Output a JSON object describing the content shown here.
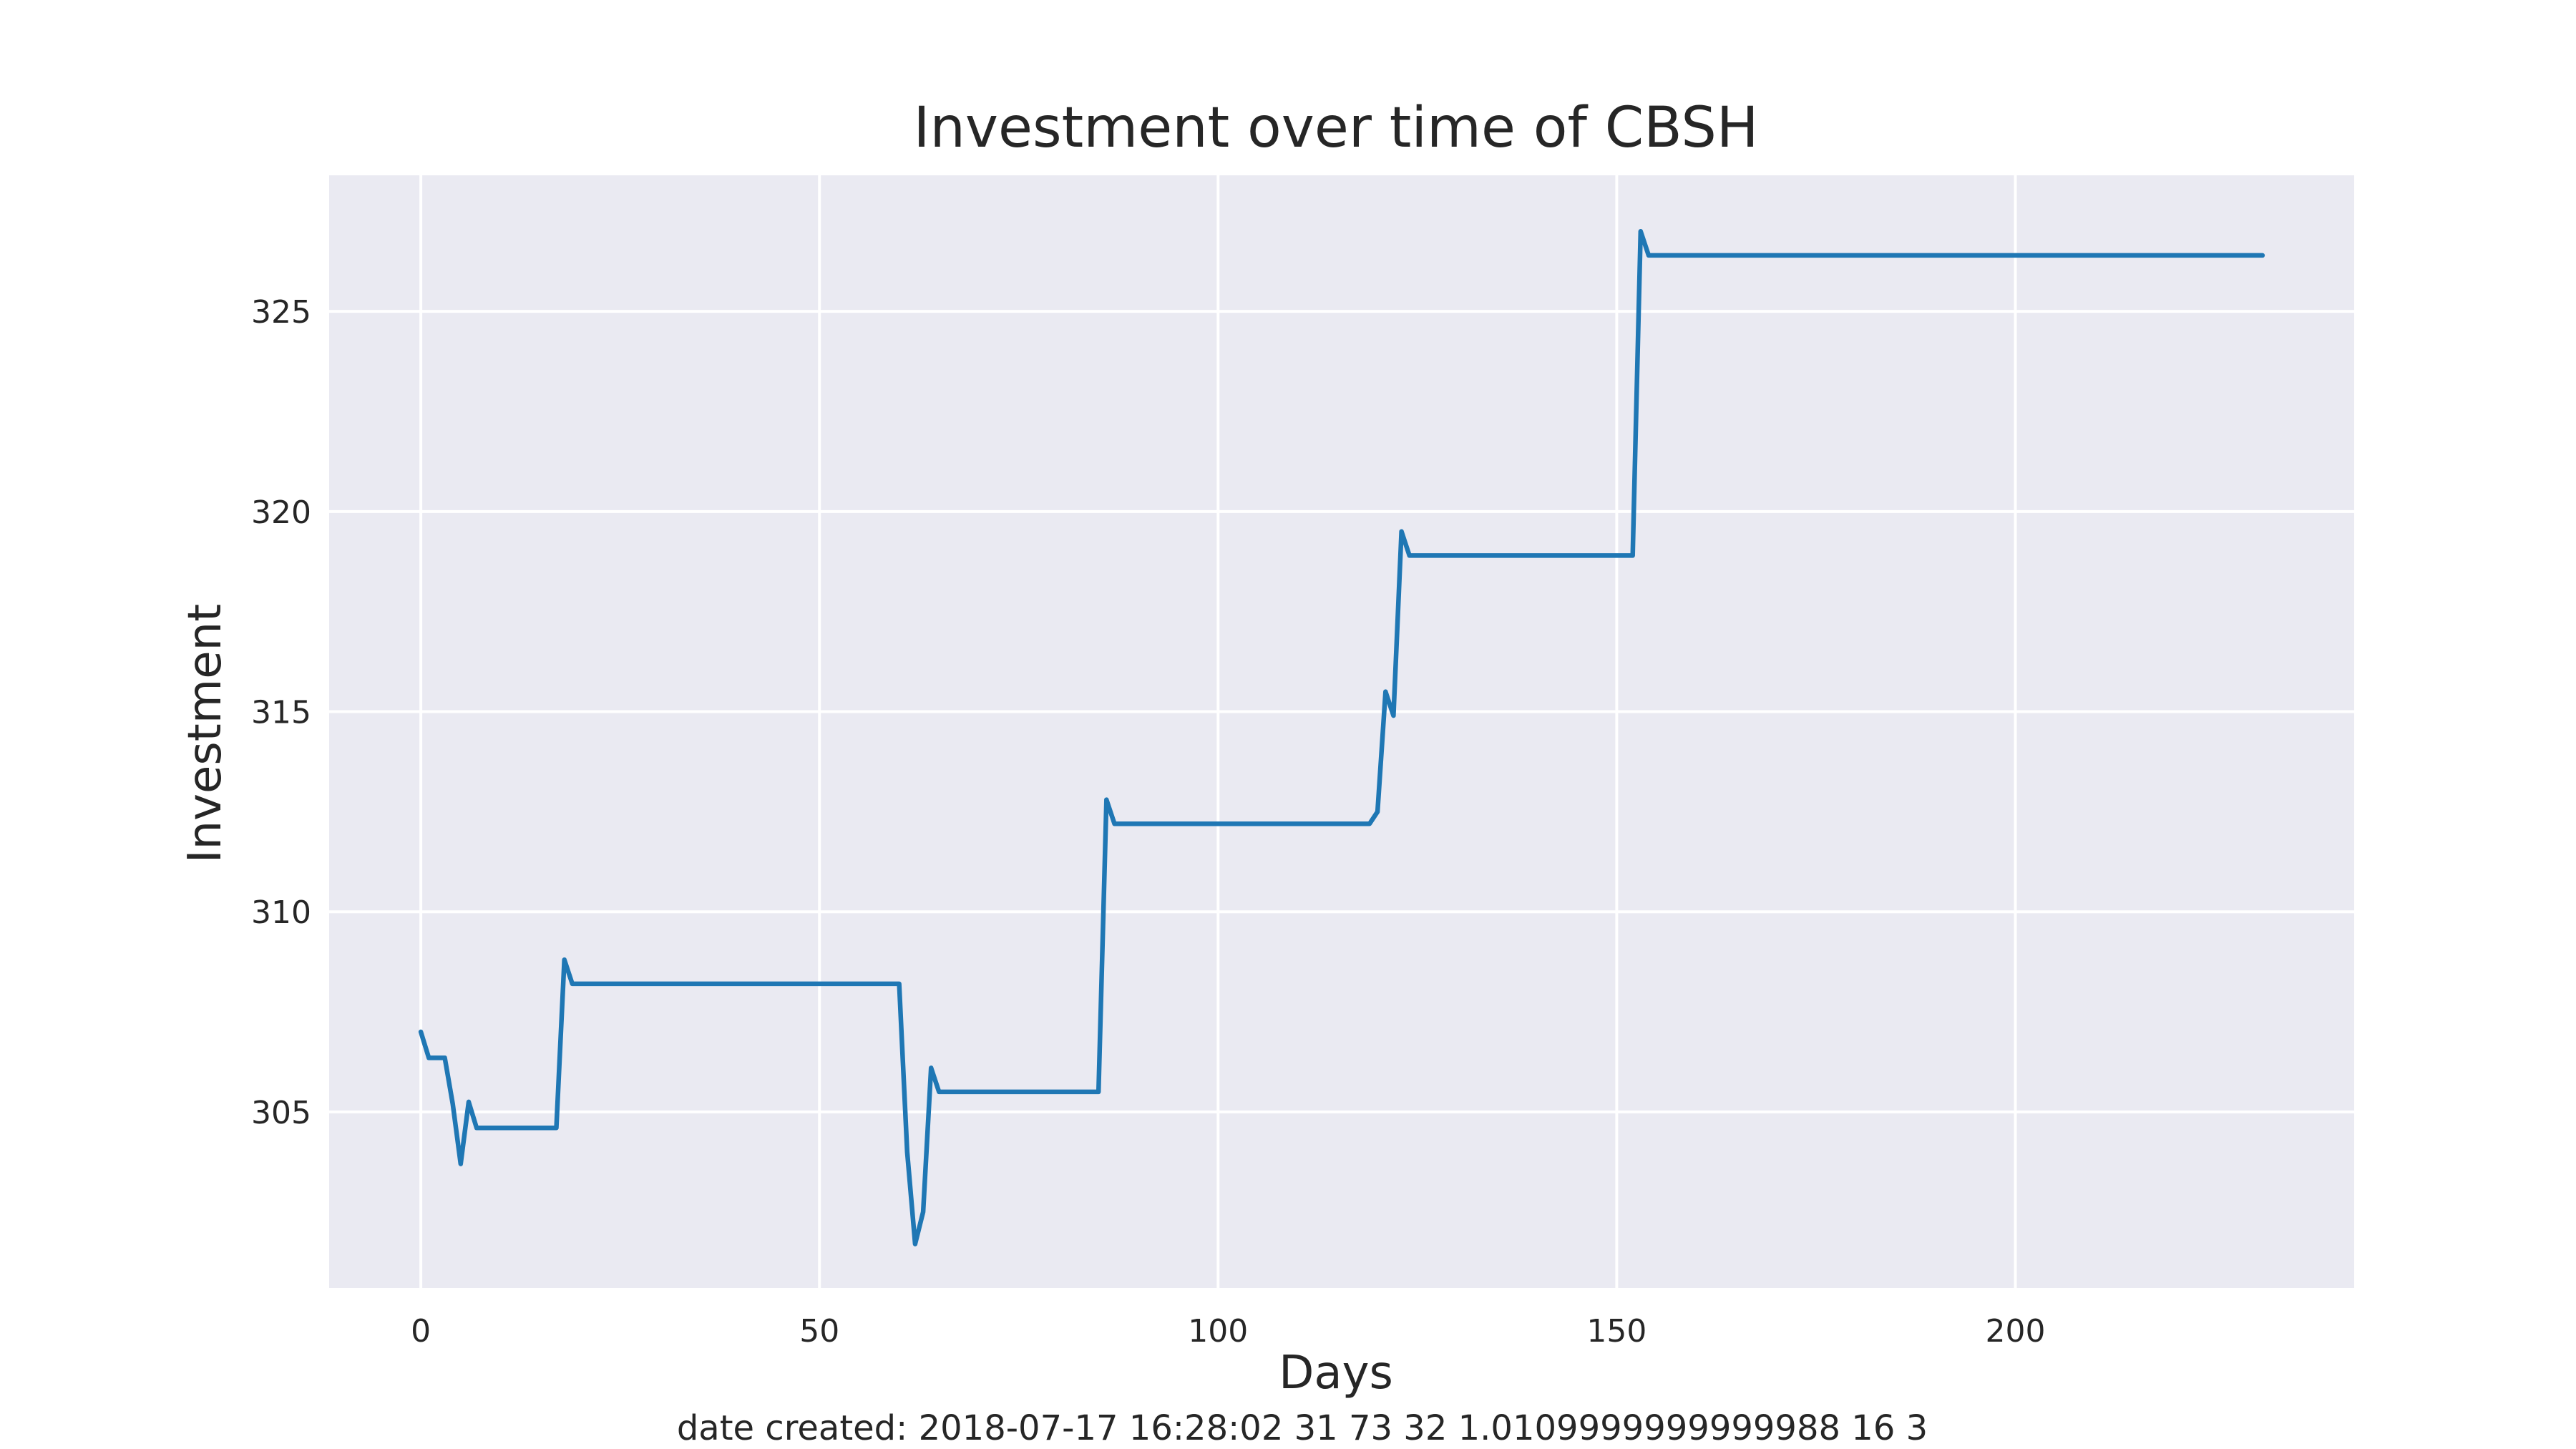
{
  "chart_data": {
    "type": "line",
    "title": "Investment over time of CBSH",
    "xlabel": "Days",
    "ylabel": "Investment",
    "xlim": [
      -11.5,
      242.5
    ],
    "ylim": [
      300.6,
      328.4
    ],
    "xticks": [
      0,
      50,
      100,
      150,
      200
    ],
    "yticks": [
      305,
      310,
      315,
      320,
      325
    ],
    "grid": true,
    "legend": "none",
    "colors": {
      "series": "#1f77b4",
      "plot_background": "#eaeaf2",
      "grid": "#ffffff"
    },
    "series": [
      {
        "points": [
          [
            0,
            307.0
          ],
          [
            1,
            306.35
          ],
          [
            3,
            306.35
          ],
          [
            4,
            305.2
          ],
          [
            5,
            303.7
          ],
          [
            6,
            305.25
          ],
          [
            7,
            304.6
          ],
          [
            17,
            304.6
          ],
          [
            18,
            308.8
          ],
          [
            19,
            308.2
          ],
          [
            60,
            308.2
          ],
          [
            61,
            304.0
          ],
          [
            62,
            301.7
          ],
          [
            63,
            302.5
          ],
          [
            64,
            306.1
          ],
          [
            65,
            305.5
          ],
          [
            85,
            305.5
          ],
          [
            86,
            312.8
          ],
          [
            87,
            312.2
          ],
          [
            119,
            312.2
          ],
          [
            120,
            312.5
          ],
          [
            121,
            315.5
          ],
          [
            122,
            314.9
          ],
          [
            123,
            319.5
          ],
          [
            124,
            318.9
          ],
          [
            152,
            318.9
          ],
          [
            153,
            327.0
          ],
          [
            154,
            326.4
          ],
          [
            231,
            326.4
          ]
        ]
      }
    ]
  },
  "footer": "date created: 2018-07-17 16:28:02 31 73 32 1.0109999999999988 16 3"
}
